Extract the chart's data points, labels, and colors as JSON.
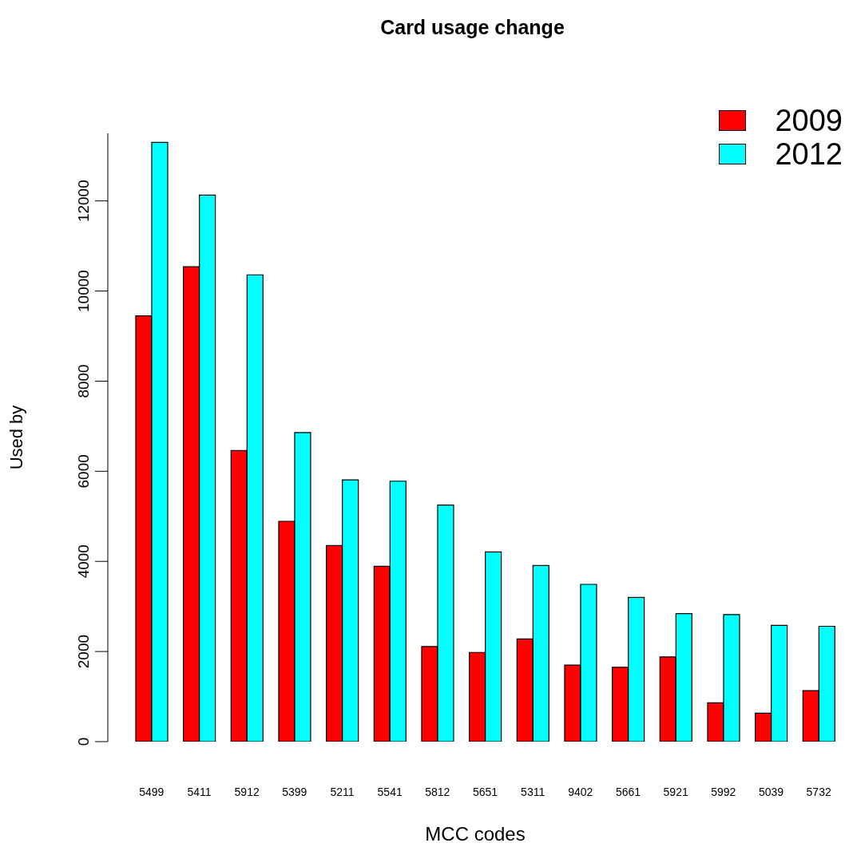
{
  "chart_data": {
    "type": "bar",
    "title": "Card usage change",
    "xlabel": "MCC codes",
    "ylabel": "Used by",
    "categories": [
      "5499",
      "5411",
      "5912",
      "5399",
      "5211",
      "5541",
      "5812",
      "5651",
      "5311",
      "9402",
      "5661",
      "5921",
      "5992",
      "5039",
      "5732"
    ],
    "series": [
      {
        "name": "2009",
        "color": "#ff0000",
        "values": [
          9450,
          10540,
          6460,
          4890,
          4350,
          3890,
          2110,
          1980,
          2280,
          1700,
          1650,
          1880,
          860,
          630,
          1130
        ]
      },
      {
        "name": "2012",
        "color": "#00ffff",
        "values": [
          13300,
          12130,
          10360,
          6860,
          5810,
          5780,
          5250,
          4210,
          3910,
          3490,
          3200,
          2840,
          2820,
          2580,
          2560
        ]
      }
    ],
    "ylim": [
      0,
      13500
    ],
    "yticks": [
      0,
      2000,
      4000,
      6000,
      8000,
      10000,
      12000
    ],
    "grid": false,
    "legend": "top right"
  }
}
